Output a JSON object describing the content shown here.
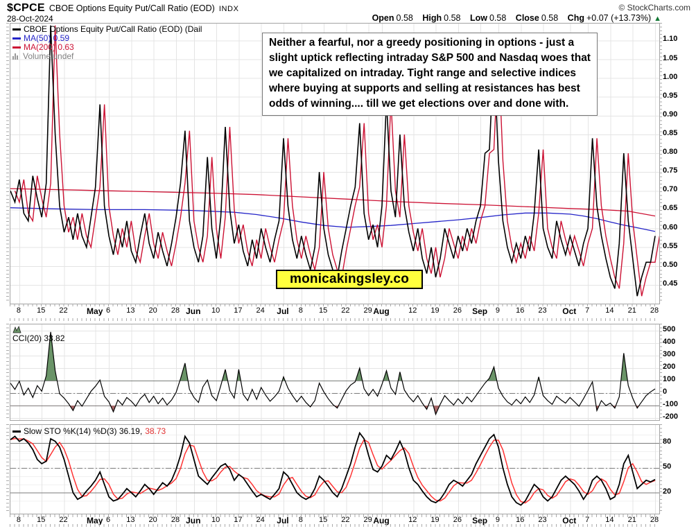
{
  "header": {
    "symbol": "$CPCE",
    "title": "CBOE Options Equity Put/Call Ratio (EOD)",
    "exchange": "INDX",
    "copyright": "© StockCharts.com",
    "date": "28-Oct-2024",
    "quote": {
      "open_label": "Open",
      "open": "0.58",
      "high_label": "High",
      "high": "0.58",
      "low_label": "Low",
      "low": "0.58",
      "close_label": "Close",
      "close": "0.58",
      "chg_label": "Chg",
      "chg": "+0.07 (+13.73%)",
      "arrow": "▲"
    }
  },
  "legends": {
    "price": {
      "series": "CBOE Options Equity Put/Call Ratio (EOD) (Dail",
      "ma50": "MA(50) 0.59",
      "ma200": "MA(200) 0.63",
      "volume": "Volume undef"
    },
    "cci": "CCI(20) 33.82",
    "sto": {
      "label": "Slow STO %K(14) %D(3) 36.19,",
      "d_value": "38.73"
    }
  },
  "annotation": {
    "lines": [
      "Neither a fearful, nor a greedy positioning in options - just a",
      "slight uptick reflecting intraday S&P 500 and Nasdaq woes that",
      "we capitalized on intraday. Tight range and selective indices",
      "where buying at supports and selling at resistances has best",
      "odds of winning.... till we get elections over and done with."
    ]
  },
  "watermark": "monicakingsley.co",
  "colors": {
    "price": "#000000",
    "price_shadow": "#cc1133",
    "ma50": "#2424c8",
    "ma200": "#cc1133",
    "sto_d": "#ff3333",
    "grid": "#e4e4e4",
    "grid_minor": "#f0f0f0",
    "threshold": "#7a7a7a",
    "cci_fill_up": "#6a9468",
    "cci_fill_down": "#aa6868",
    "up_arrow": "#117733",
    "watermark_bg": "#ffff3d"
  },
  "xaxis": {
    "days": 145,
    "ticks": [
      {
        "d": 2,
        "label": "8"
      },
      {
        "d": 7,
        "label": "15"
      },
      {
        "d": 12,
        "label": "22"
      },
      {
        "d": 19,
        "label": "May",
        "bold": true
      },
      {
        "d": 22,
        "label": "6"
      },
      {
        "d": 27,
        "label": "13"
      },
      {
        "d": 32,
        "label": "20"
      },
      {
        "d": 37,
        "label": "28"
      },
      {
        "d": 41,
        "label": "Jun",
        "bold": true
      },
      {
        "d": 46,
        "label": "10"
      },
      {
        "d": 51,
        "label": "17"
      },
      {
        "d": 56,
        "label": "24"
      },
      {
        "d": 61,
        "label": "Jul",
        "bold": true
      },
      {
        "d": 65,
        "label": "8"
      },
      {
        "d": 70,
        "label": "15"
      },
      {
        "d": 75,
        "label": "22"
      },
      {
        "d": 80,
        "label": "29"
      },
      {
        "d": 83,
        "label": "Aug",
        "bold": true
      },
      {
        "d": 90,
        "label": "12"
      },
      {
        "d": 95,
        "label": "19"
      },
      {
        "d": 100,
        "label": "26"
      },
      {
        "d": 105,
        "label": "Sep",
        "bold": true
      },
      {
        "d": 109,
        "label": "9"
      },
      {
        "d": 114,
        "label": "16"
      },
      {
        "d": 119,
        "label": "23"
      },
      {
        "d": 125,
        "label": "Oct",
        "bold": true
      },
      {
        "d": 129,
        "label": "7"
      },
      {
        "d": 134,
        "label": "14"
      },
      {
        "d": 139,
        "label": "21"
      },
      {
        "d": 144,
        "label": "28"
      }
    ]
  },
  "chart_data": [
    {
      "type": "line",
      "panel": "price",
      "title": "CBOE Options Equity Put/Call Ratio (EOD)",
      "ylim": [
        0.4,
        1.145
      ],
      "y_ticks": [
        1.1,
        1.05,
        1.0,
        0.95,
        0.9,
        0.85,
        0.8,
        0.75,
        0.7,
        0.65,
        0.6,
        0.55,
        0.5,
        0.45
      ],
      "ohlc": {
        "open": 0.58,
        "high": 0.58,
        "low": 0.58,
        "close": 0.58,
        "chg": 0.07,
        "chg_pct": 13.73
      },
      "series": [
        {
          "name": "put-call-ratio",
          "color": "#000000",
          "width": 1.6,
          "values": [
            0.7,
            0.67,
            0.73,
            0.64,
            0.62,
            0.74,
            0.68,
            0.63,
            0.72,
            1.14,
            0.85,
            0.66,
            0.59,
            0.63,
            0.57,
            0.64,
            0.58,
            0.55,
            0.63,
            0.71,
            0.93,
            0.66,
            0.58,
            0.53,
            0.6,
            0.55,
            0.62,
            0.54,
            0.51,
            0.58,
            0.64,
            0.56,
            0.52,
            0.59,
            0.54,
            0.5,
            0.56,
            0.63,
            0.72,
            0.86,
            0.62,
            0.55,
            0.51,
            0.58,
            0.79,
            0.6,
            0.52,
            0.63,
            0.87,
            0.65,
            0.56,
            0.61,
            0.54,
            0.5,
            0.57,
            0.52,
            0.6,
            0.55,
            0.51,
            0.57,
            0.62,
            0.84,
            0.66,
            0.57,
            0.52,
            0.58,
            0.53,
            0.49,
            0.55,
            0.75,
            0.6,
            0.53,
            0.49,
            0.47,
            0.54,
            0.6,
            0.66,
            0.71,
            0.88,
            0.64,
            0.57,
            0.61,
            0.55,
            0.66,
            0.94,
            0.7,
            0.63,
            0.85,
            0.66,
            0.59,
            0.54,
            0.6,
            0.52,
            0.48,
            0.55,
            0.47,
            0.52,
            0.6,
            0.56,
            0.52,
            0.58,
            0.54,
            0.6,
            0.56,
            0.62,
            0.66,
            0.8,
            0.81,
            1.07,
            0.78,
            0.62,
            0.55,
            0.51,
            0.56,
            0.52,
            0.58,
            0.54,
            0.64,
            0.81,
            0.6,
            0.55,
            0.52,
            0.62,
            0.57,
            0.53,
            0.58,
            0.54,
            0.5,
            0.56,
            0.6,
            0.84,
            0.66,
            0.58,
            0.52,
            0.47,
            0.44,
            0.56,
            0.8,
            0.62,
            0.52,
            0.42,
            0.47,
            0.51,
            0.51,
            0.58
          ]
        },
        {
          "name": "price-shadow",
          "color": "#cc1133",
          "width": 1.4,
          "derived_from": "put-call-ratio",
          "lag_days": 1
        },
        {
          "name": "MA(50)",
          "last": 0.59,
          "color": "#2424c8",
          "width": 1.3,
          "anchors": [
            [
              0,
              0.655
            ],
            [
              10,
              0.652
            ],
            [
              20,
              0.65
            ],
            [
              30,
              0.65
            ],
            [
              40,
              0.648
            ],
            [
              50,
              0.643
            ],
            [
              55,
              0.637
            ],
            [
              60,
              0.628
            ],
            [
              65,
              0.617
            ],
            [
              70,
              0.608
            ],
            [
              75,
              0.603
            ],
            [
              80,
              0.605
            ],
            [
              85,
              0.608
            ],
            [
              90,
              0.613
            ],
            [
              95,
              0.618
            ],
            [
              100,
              0.623
            ],
            [
              105,
              0.629
            ],
            [
              110,
              0.636
            ],
            [
              115,
              0.641
            ],
            [
              120,
              0.641
            ],
            [
              125,
              0.638
            ],
            [
              128,
              0.633
            ],
            [
              131,
              0.626
            ],
            [
              134,
              0.617
            ],
            [
              137,
              0.609
            ],
            [
              140,
              0.602
            ],
            [
              144,
              0.592
            ]
          ]
        },
        {
          "name": "MA(200)",
          "last": 0.63,
          "color": "#cc1133",
          "width": 1.3,
          "anchors": [
            [
              0,
              0.706
            ],
            [
              15,
              0.702
            ],
            [
              30,
              0.698
            ],
            [
              45,
              0.694
            ],
            [
              55,
              0.69
            ],
            [
              65,
              0.684
            ],
            [
              75,
              0.678
            ],
            [
              85,
              0.672
            ],
            [
              95,
              0.667
            ],
            [
              105,
              0.663
            ],
            [
              115,
              0.658
            ],
            [
              125,
              0.653
            ],
            [
              132,
              0.65
            ],
            [
              138,
              0.646
            ],
            [
              144,
              0.633
            ]
          ]
        }
      ]
    },
    {
      "type": "line",
      "panel": "cci",
      "title": "CCI(20)",
      "last": 33.82,
      "ylim": [
        -216,
        550
      ],
      "y_ticks": [
        500,
        400,
        300,
        200,
        100,
        0,
        -100,
        -200
      ],
      "solid_lines": [
        100,
        -100
      ],
      "dashdot_lines": [
        0
      ],
      "fill_above": 100,
      "fill_below": -100,
      "values": [
        80,
        30,
        95,
        -15,
        40,
        -35,
        60,
        15,
        140,
        490,
        180,
        -5,
        -40,
        -85,
        -140,
        -60,
        -105,
        -45,
        15,
        55,
        105,
        -25,
        -70,
        -150,
        -55,
        -95,
        -35,
        -65,
        -105,
        -45,
        -10,
        -75,
        -25,
        -85,
        -40,
        -95,
        -55,
        5,
        115,
        240,
        30,
        -35,
        -75,
        50,
        105,
        -20,
        -60,
        60,
        190,
        20,
        -40,
        190,
        -10,
        -60,
        30,
        -50,
        45,
        -15,
        -65,
        -30,
        15,
        130,
        40,
        -20,
        -70,
        -25,
        -75,
        -110,
        -60,
        80,
        10,
        -45,
        -90,
        -120,
        -50,
        20,
        65,
        90,
        200,
        35,
        -20,
        30,
        -25,
        70,
        180,
        40,
        -10,
        170,
        25,
        -30,
        -70,
        -20,
        -80,
        -130,
        -40,
        -170,
        -90,
        -20,
        -60,
        -95,
        -45,
        -85,
        -30,
        -70,
        -20,
        30,
        80,
        120,
        210,
        40,
        -25,
        -70,
        -95,
        -50,
        -85,
        -30,
        -75,
        -15,
        130,
        -20,
        -60,
        -90,
        -25,
        -55,
        -80,
        -35,
        -70,
        -105,
        -45,
        20,
        90,
        -140,
        -60,
        -100,
        -80,
        -120,
        -30,
        320,
        60,
        -40,
        -120,
        -70,
        -20,
        10,
        34
      ]
    },
    {
      "type": "line",
      "panel": "sto",
      "title": "Slow STO %K(14) %D(3)",
      "k_last": 36.19,
      "d_last": 38.73,
      "ylim": [
        -5.3,
        101.7
      ],
      "y_ticks": [
        80,
        50,
        20
      ],
      "grid_minor": [
        90,
        70,
        60,
        40,
        30,
        10
      ],
      "solid_lines": [
        80,
        20
      ],
      "dashdot_lines": [
        50
      ],
      "d_smoothing": 3,
      "k_values": [
        84,
        88,
        82,
        85,
        80,
        72,
        60,
        55,
        58,
        85,
        82,
        75,
        60,
        40,
        20,
        12,
        15,
        22,
        28,
        35,
        45,
        30,
        15,
        10,
        12,
        18,
        25,
        20,
        15,
        22,
        30,
        25,
        18,
        25,
        32,
        28,
        35,
        48,
        65,
        88,
        80,
        60,
        40,
        35,
        30,
        38,
        45,
        52,
        55,
        48,
        35,
        42,
        38,
        30,
        22,
        15,
        18,
        15,
        12,
        18,
        25,
        45,
        40,
        30,
        20,
        15,
        12,
        15,
        25,
        40,
        35,
        28,
        20,
        15,
        25,
        40,
        55,
        75,
        92,
        85,
        65,
        48,
        45,
        52,
        65,
        60,
        70,
        82,
        70,
        50,
        35,
        30,
        22,
        15,
        10,
        8,
        12,
        20,
        30,
        35,
        32,
        28,
        35,
        42,
        55,
        65,
        75,
        85,
        90,
        75,
        50,
        30,
        15,
        8,
        5,
        10,
        20,
        30,
        25,
        15,
        10,
        15,
        25,
        35,
        40,
        35,
        30,
        22,
        12,
        20,
        35,
        40,
        35,
        25,
        12,
        15,
        30,
        55,
        65,
        45,
        25,
        30,
        35,
        33,
        36
      ]
    }
  ]
}
